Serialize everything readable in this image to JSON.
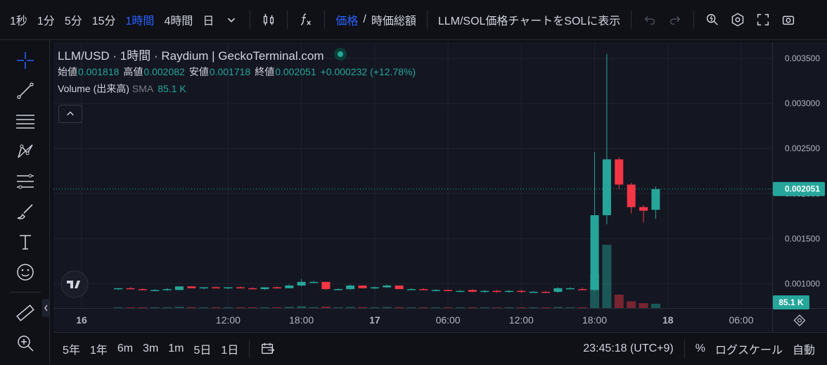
{
  "toolbar": {
    "intervals": [
      "1秒",
      "1分",
      "5分",
      "15分",
      "1時間",
      "4時間",
      "日"
    ],
    "active_interval": "1時間",
    "price_label": "価格",
    "slash": "/",
    "mcap_label": "時価総額",
    "sol_label": "LLM/SOL価格チャートをSOLに表示"
  },
  "legend": {
    "title": "LLM/USD · 1時間 · Raydium | GeckoTerminal.com",
    "open_label": "始値",
    "open": "0.001818",
    "high_label": "高値",
    "high": "0.002082",
    "low_label": "安値",
    "low": "0.001718",
    "close_label": "終値",
    "close": "0.002051",
    "change": "+0.000232 (+12.78%)",
    "volume_label": "Volume (出来高)",
    "sma_label": "SMA",
    "sma_value": "85.1 K"
  },
  "bottombar": {
    "ranges": [
      "5年",
      "1年",
      "6m",
      "3m",
      "1m",
      "5日",
      "1日"
    ],
    "clock": "23:45:18 (UTC+9)",
    "percent": "%",
    "log": "ログスケール",
    "auto": "自動"
  },
  "colors": {
    "up": "#26a69a",
    "down": "#f23645",
    "accent": "#2962ff"
  },
  "chart_data": {
    "type": "candlestick",
    "y_axis": {
      "ticks": [
        "0.001000",
        "0.001500",
        "0.002000",
        "0.002500",
        "0.003000",
        "0.003500"
      ],
      "min": 0.00073,
      "max": 0.00368
    },
    "x_ticks": [
      {
        "label": "16",
        "t": 0,
        "bold": true
      },
      {
        "label": "12:00",
        "t": 12
      },
      {
        "label": "18:00",
        "t": 18
      },
      {
        "label": "17",
        "t": 24,
        "bold": true
      },
      {
        "label": "06:00",
        "t": 30
      },
      {
        "label": "12:00",
        "t": 36
      },
      {
        "label": "18:00",
        "t": 42
      },
      {
        "label": "18",
        "t": 48,
        "bold": true
      },
      {
        "label": "06:00",
        "t": 54
      }
    ],
    "price_label": "0.002051",
    "volume_label": "85.1 K",
    "candles": [
      {
        "t": 3,
        "o": 0.00094,
        "h": 0.00095,
        "l": 0.00093,
        "c": 0.00095,
        "v": 6
      },
      {
        "t": 4,
        "o": 0.00095,
        "h": 0.00096,
        "l": 0.00094,
        "c": 0.00094,
        "v": 5
      },
      {
        "t": 5,
        "o": 0.00094,
        "h": 0.00095,
        "l": 0.00093,
        "c": 0.00093,
        "v": 4
      },
      {
        "t": 6,
        "o": 0.00093,
        "h": 0.00094,
        "l": 0.00092,
        "c": 0.00093,
        "v": 4
      },
      {
        "t": 7,
        "o": 0.00093,
        "h": 0.00095,
        "l": 0.00092,
        "c": 0.00094,
        "v": 6
      },
      {
        "t": 8,
        "o": 0.00093,
        "h": 0.00097,
        "l": 0.00093,
        "c": 0.00097,
        "v": 10
      },
      {
        "t": 9,
        "o": 0.00097,
        "h": 0.00097,
        "l": 0.00095,
        "c": 0.00095,
        "v": 7
      },
      {
        "t": 10,
        "o": 0.00095,
        "h": 0.00096,
        "l": 0.00094,
        "c": 0.00096,
        "v": 5
      },
      {
        "t": 11,
        "o": 0.00096,
        "h": 0.00097,
        "l": 0.00095,
        "c": 0.00095,
        "v": 6
      },
      {
        "t": 12,
        "o": 0.00095,
        "h": 0.00096,
        "l": 0.00094,
        "c": 0.00096,
        "v": 5
      },
      {
        "t": 13,
        "o": 0.00096,
        "h": 0.00097,
        "l": 0.00095,
        "c": 0.00095,
        "v": 6
      },
      {
        "t": 14,
        "o": 0.00095,
        "h": 0.00096,
        "l": 0.00094,
        "c": 0.00094,
        "v": 5
      },
      {
        "t": 15,
        "o": 0.00094,
        "h": 0.00096,
        "l": 0.00093,
        "c": 0.00096,
        "v": 6
      },
      {
        "t": 16,
        "o": 0.00096,
        "h": 0.00097,
        "l": 0.00095,
        "c": 0.00095,
        "v": 6
      },
      {
        "t": 17,
        "o": 0.00095,
        "h": 0.00099,
        "l": 0.00095,
        "c": 0.00098,
        "v": 10
      },
      {
        "t": 18,
        "o": 0.00098,
        "h": 0.00105,
        "l": 0.00097,
        "c": 0.00102,
        "v": 14
      },
      {
        "t": 19,
        "o": 0.00102,
        "h": 0.00103,
        "l": 0.00101,
        "c": 0.00102,
        "v": 7
      },
      {
        "t": 20,
        "o": 0.00102,
        "h": 0.00102,
        "l": 0.00093,
        "c": 0.00094,
        "v": 12
      },
      {
        "t": 21,
        "o": 0.00094,
        "h": 0.00095,
        "l": 0.00093,
        "c": 0.00094,
        "v": 5
      },
      {
        "t": 22,
        "o": 0.00094,
        "h": 0.00099,
        "l": 0.00093,
        "c": 0.00098,
        "v": 8
      },
      {
        "t": 23,
        "o": 0.00098,
        "h": 0.00098,
        "l": 0.00095,
        "c": 0.00095,
        "v": 7
      },
      {
        "t": 24,
        "o": 0.00095,
        "h": 0.00097,
        "l": 0.00094,
        "c": 0.00096,
        "v": 5
      },
      {
        "t": 25,
        "o": 0.00096,
        "h": 0.00099,
        "l": 0.00095,
        "c": 0.00098,
        "v": 8
      },
      {
        "t": 26,
        "o": 0.00098,
        "h": 0.00098,
        "l": 0.00094,
        "c": 0.00094,
        "v": 7
      },
      {
        "t": 27,
        "o": 0.00094,
        "h": 0.00095,
        "l": 0.00093,
        "c": 0.00094,
        "v": 4
      },
      {
        "t": 28,
        "o": 0.00094,
        "h": 0.00095,
        "l": 0.00093,
        "c": 0.00093,
        "v": 4
      },
      {
        "t": 29,
        "o": 0.00093,
        "h": 0.00094,
        "l": 0.00092,
        "c": 0.00093,
        "v": 4
      },
      {
        "t": 30,
        "o": 0.00093,
        "h": 0.00094,
        "l": 0.00092,
        "c": 0.00092,
        "v": 4
      },
      {
        "t": 31,
        "o": 0.00092,
        "h": 0.00093,
        "l": 0.00091,
        "c": 0.00092,
        "v": 4
      },
      {
        "t": 32,
        "o": 0.00093,
        "h": 0.00094,
        "l": 0.00091,
        "c": 0.00091,
        "v": 6
      },
      {
        "t": 33,
        "o": 0.00091,
        "h": 0.00093,
        "l": 0.0009,
        "c": 0.00092,
        "v": 5
      },
      {
        "t": 34,
        "o": 0.00092,
        "h": 0.00093,
        "l": 0.0009,
        "c": 0.00091,
        "v": 4
      },
      {
        "t": 35,
        "o": 0.00091,
        "h": 0.00093,
        "l": 0.0009,
        "c": 0.00092,
        "v": 5
      },
      {
        "t": 36,
        "o": 0.00092,
        "h": 0.00093,
        "l": 0.0009,
        "c": 0.00091,
        "v": 4
      },
      {
        "t": 37,
        "o": 0.00091,
        "h": 0.00092,
        "l": 0.0009,
        "c": 0.00091,
        "v": 4
      },
      {
        "t": 38,
        "o": 0.00091,
        "h": 0.00092,
        "l": 0.0009,
        "c": 0.0009,
        "v": 4
      },
      {
        "t": 39,
        "o": 0.00091,
        "h": 0.00096,
        "l": 0.0009,
        "c": 0.00095,
        "v": 8
      },
      {
        "t": 40,
        "o": 0.00095,
        "h": 0.00096,
        "l": 0.00094,
        "c": 0.00095,
        "v": 5
      },
      {
        "t": 41,
        "o": 0.00094,
        "h": 0.00096,
        "l": 0.00093,
        "c": 0.00093,
        "v": 6
      },
      {
        "t": 42,
        "o": 0.00093,
        "h": 0.00246,
        "l": 0.00092,
        "c": 0.00176,
        "v": 280
      },
      {
        "t": 43,
        "o": 0.00176,
        "h": 0.00355,
        "l": 0.00166,
        "c": 0.00238,
        "v": 520
      },
      {
        "t": 44,
        "o": 0.00238,
        "h": 0.0024,
        "l": 0.00205,
        "c": 0.0021,
        "v": 110
      },
      {
        "t": 45,
        "o": 0.0021,
        "h": 0.00212,
        "l": 0.00178,
        "c": 0.00185,
        "v": 55
      },
      {
        "t": 46,
        "o": 0.00185,
        "h": 0.00187,
        "l": 0.00168,
        "c": 0.00181,
        "v": 40
      },
      {
        "t": 47,
        "o": 0.00182,
        "h": 0.00208,
        "l": 0.00172,
        "c": 0.00205,
        "v": 35
      }
    ]
  }
}
